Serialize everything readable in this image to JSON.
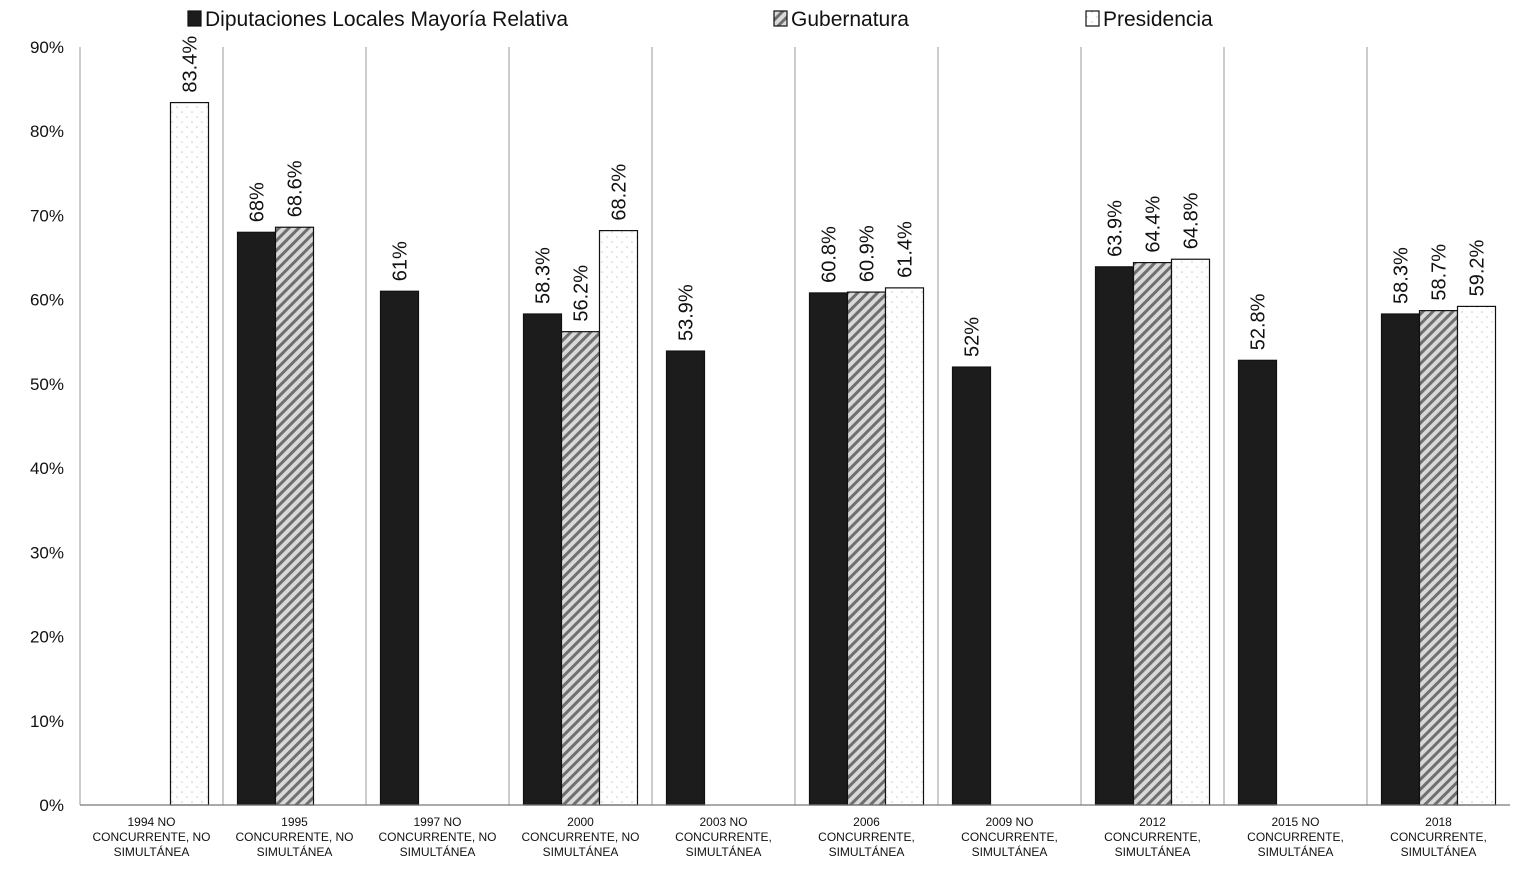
{
  "chart_data": {
    "type": "bar",
    "categories": [
      [
        "1994 NO",
        "CONCURRENTE, NO",
        "SIMULTÁNEA"
      ],
      [
        "1995",
        "CONCURRENTE, NO",
        "SIMULTÁNEA"
      ],
      [
        "1997 NO",
        "CONCURRENTE, NO",
        "SIMULTÁNEA"
      ],
      [
        "2000",
        "CONCURRENTE, NO",
        "SIMULTÁNEA"
      ],
      [
        "2003 NO",
        "CONCURRENTE,",
        "SIMULTÁNEA"
      ],
      [
        "2006",
        "CONCURRENTE,",
        "SIMULTÁNEA"
      ],
      [
        "2009 NO",
        "CONCURRENTE,",
        "SIMULTÁNEA"
      ],
      [
        "2012",
        "CONCURRENTE,",
        "SIMULTÁNEA"
      ],
      [
        "2015 NO",
        "CONCURRENTE,",
        "SIMULTÁNEA"
      ],
      [
        "2018",
        "CONCURRENTE,",
        "SIMULTÁNEA"
      ]
    ],
    "series": [
      {
        "name": "Diputaciones Locales Mayoría Relativa",
        "fill": "solid",
        "color": "#1c1c1c",
        "values": [
          null,
          68,
          61,
          58.3,
          53.9,
          60.8,
          52,
          63.9,
          52.8,
          58.3
        ],
        "labels": [
          null,
          "68%",
          "61%",
          "58.3%",
          "53.9%",
          "60.8%",
          "52%",
          "63.9%",
          "52.8%",
          "58.3%"
        ]
      },
      {
        "name": "Gubernatura",
        "fill": "hatched",
        "color": "#7a7a7a",
        "values": [
          null,
          68.6,
          null,
          56.2,
          null,
          60.9,
          null,
          64.4,
          null,
          58.7
        ],
        "labels": [
          null,
          "68.6%",
          null,
          "56.2%",
          null,
          "60.9%",
          null,
          "64.4%",
          null,
          "58.7%"
        ]
      },
      {
        "name": "Presidencia",
        "fill": "dotted",
        "color": "#ffffff",
        "values": [
          83.4,
          null,
          null,
          68.2,
          null,
          61.4,
          null,
          64.8,
          null,
          59.2
        ],
        "labels": [
          "83.4%",
          null,
          null,
          "68.2%",
          null,
          "61.4%",
          null,
          "64.8%",
          null,
          "59.2%"
        ]
      }
    ],
    "yticks": [
      "0%",
      "10%",
      "20%",
      "30%",
      "40%",
      "50%",
      "60%",
      "70%",
      "80%",
      "90%"
    ],
    "ylim": [
      0,
      90
    ],
    "grid": "vertical separators between categories",
    "legend_position": "top",
    "title": "",
    "xlabel": "",
    "ylabel": ""
  }
}
